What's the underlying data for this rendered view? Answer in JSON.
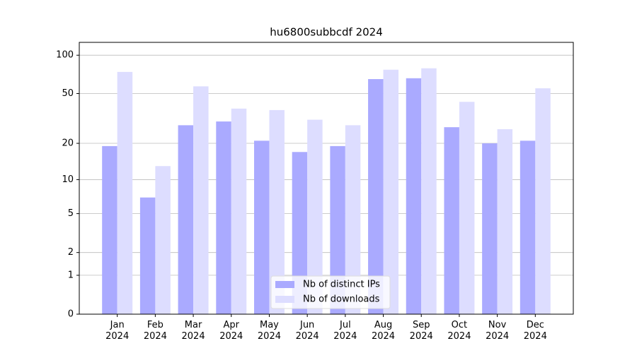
{
  "chart_data": {
    "type": "bar",
    "title": "hu6800subbcdf 2024",
    "categories": [
      "Jan\n2024",
      "Feb\n2024",
      "Mar\n2024",
      "Apr\n2024",
      "May\n2024",
      "Jun\n2024",
      "Jul\n2024",
      "Aug\n2024",
      "Sep\n2024",
      "Oct\n2024",
      "Nov\n2024",
      "Dec\n2024"
    ],
    "series": [
      {
        "name": "Nb of distinct IPs",
        "color": "#aaaaff",
        "values": [
          19,
          7,
          28,
          30,
          21,
          17,
          19,
          65,
          66,
          27,
          20,
          21
        ]
      },
      {
        "name": "Nb of downloads",
        "color": "#ddddff",
        "values": [
          74,
          13,
          57,
          38,
          37,
          31,
          28,
          77,
          79,
          43,
          26,
          55
        ]
      }
    ],
    "yscale": "log1p",
    "ylim": [
      0,
      126
    ],
    "yticks": [
      0,
      1,
      2,
      5,
      10,
      20,
      50,
      100
    ],
    "grid": true,
    "legend": "lower center"
  }
}
